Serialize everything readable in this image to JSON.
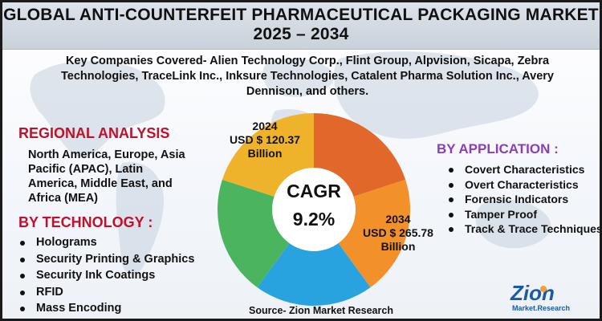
{
  "title": {
    "line1": "GLOBAL ANTI-COUNTERFEIT PHARMACEUTICAL PACKAGING MARKET",
    "line2": "2025 – 2034"
  },
  "companies_text": "Key Companies Covered- Alien Technology Corp., Flint Group, Alpvision, Sicapa, Zebra Technologies, TraceLink Inc., Inksure Technologies, Catalent Pharma Solution Inc., Avery Dennison, and others.",
  "regional": {
    "heading": "REGIONAL ANALYSIS",
    "text": "North America, Europe, Asia Pacific (APAC), Latin America, Middle East, and Africa (MEA)"
  },
  "technology": {
    "heading": "BY TECHNOLOGY :",
    "items": [
      "Holograms",
      "Security Printing & Graphics",
      "Security Ink Coatings",
      "RFID",
      "Mass Encoding"
    ]
  },
  "application": {
    "heading": "BY APPLICATION :",
    "items": [
      "Covert Characteristics",
      "Overt Characteristics",
      "Forensic Indicators",
      "Tamper Proof",
      "Track & Trace Techniques"
    ]
  },
  "cagr": {
    "label": "CAGR",
    "value": "9.2%"
  },
  "market_2024": {
    "year": "2024",
    "value": "USD $ 120.37 Billion"
  },
  "market_2034": {
    "year": "2034",
    "value": "USD $ 265.78 Billion"
  },
  "source": "Source- Zion Market Research",
  "logo": {
    "brand": "Zion",
    "sub": "Market.Research"
  },
  "chart_data": {
    "type": "pie",
    "donut": true,
    "values": [
      20,
      20,
      20,
      20,
      20
    ],
    "colors": [
      "#e2672b",
      "#f2902a",
      "#29a3df",
      "#4bb45f",
      "#efb32b"
    ],
    "start_angle_deg": 0,
    "center_color": "#ffffff"
  },
  "colors": {
    "accent_red": "#c0102a",
    "accent_purple": "#8a3fb5",
    "logo_blue": "#1b5aa6"
  }
}
